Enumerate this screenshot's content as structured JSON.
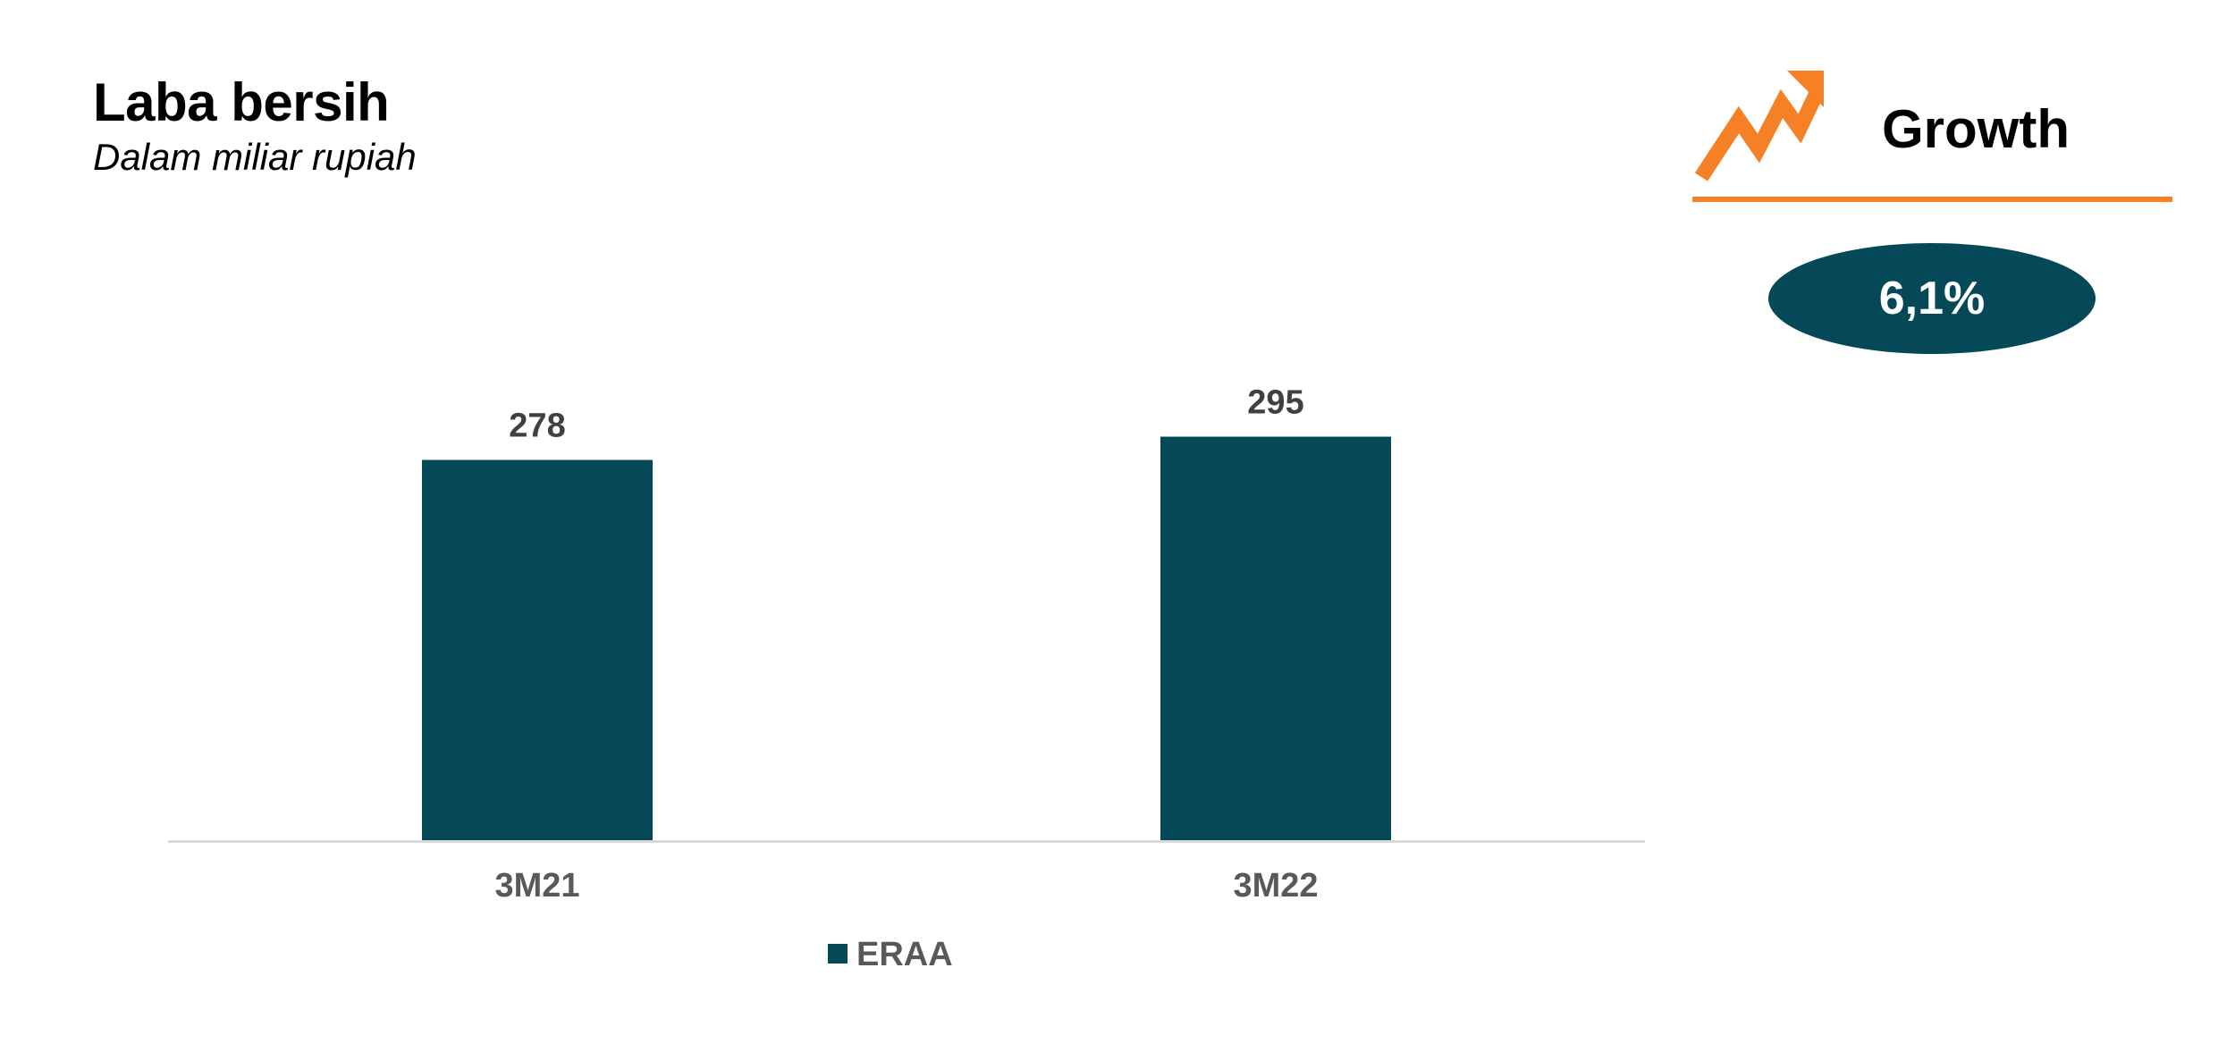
{
  "header": {
    "title": "Laba bersih",
    "subtitle": "Dalam miliar rupiah"
  },
  "growth": {
    "label": "Growth",
    "value": "6,1%",
    "icon": "trend-up-arrow-icon",
    "accent_color": "#f58025",
    "badge_color": "#054858"
  },
  "chart_data": {
    "type": "bar",
    "categories": [
      "3M21",
      "3M22"
    ],
    "series": [
      {
        "name": "ERAA",
        "values": [
          278,
          295
        ],
        "color": "#054858"
      }
    ],
    "data_labels": [
      "278",
      "295"
    ],
    "ylim": [
      0,
      330
    ],
    "grid": false,
    "legend": "bottom",
    "xlabel": "",
    "ylabel": ""
  }
}
